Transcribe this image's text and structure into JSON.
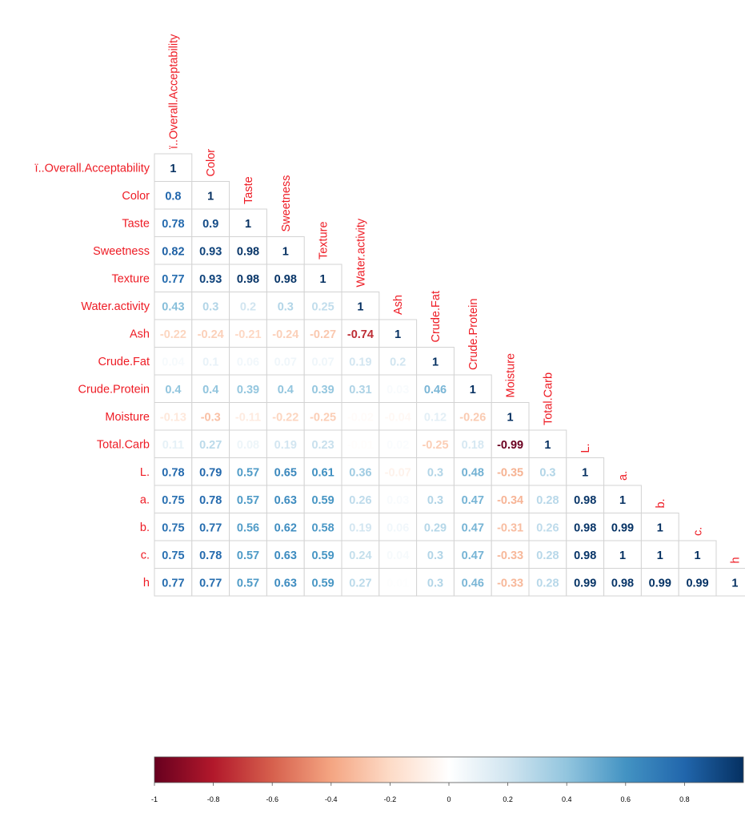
{
  "chart_data": {
    "type": "heatmap",
    "variables": [
      "ï..Overall.Acceptability",
      "Color",
      "Taste",
      "Sweetness",
      "Texture",
      "Water.activity",
      "Ash",
      "Crude.Fat",
      "Crude.Protein",
      "Moisture",
      "Total.Carb",
      "L.",
      "a.",
      "b.",
      "c.",
      "h"
    ],
    "matrix_lower": [
      [
        1
      ],
      [
        0.8,
        1
      ],
      [
        0.78,
        0.9,
        1
      ],
      [
        0.82,
        0.93,
        0.98,
        1
      ],
      [
        0.77,
        0.93,
        0.98,
        0.98,
        1
      ],
      [
        0.43,
        0.3,
        0.2,
        0.3,
        0.25,
        1
      ],
      [
        -0.22,
        -0.24,
        -0.21,
        -0.24,
        -0.27,
        -0.74,
        1
      ],
      [
        0.04,
        0.1,
        0.06,
        0.07,
        0.07,
        0.19,
        0.2,
        1
      ],
      [
        0.4,
        0.4,
        0.39,
        0.4,
        0.39,
        0.31,
        0.03,
        0.46,
        1
      ],
      [
        -0.13,
        -0.3,
        -0.11,
        -0.22,
        -0.25,
        -0.02,
        -0.04,
        0.12,
        -0.26,
        1
      ],
      [
        0.11,
        0.27,
        0.08,
        0.19,
        0.23,
        -0.01,
        0.02,
        -0.25,
        0.18,
        -0.99,
        1
      ],
      [
        0.78,
        0.79,
        0.57,
        0.65,
        0.61,
        0.36,
        -0.07,
        0.3,
        0.48,
        -0.35,
        0.3,
        1
      ],
      [
        0.75,
        0.78,
        0.57,
        0.63,
        0.59,
        0.26,
        0.03,
        0.3,
        0.47,
        -0.34,
        0.28,
        0.98,
        1
      ],
      [
        0.75,
        0.77,
        0.56,
        0.62,
        0.58,
        0.19,
        0.06,
        0.29,
        0.47,
        -0.31,
        0.26,
        0.98,
        0.99,
        1
      ],
      [
        0.75,
        0.78,
        0.57,
        0.63,
        0.59,
        0.24,
        0.04,
        0.3,
        0.47,
        -0.33,
        0.28,
        0.98,
        1,
        1,
        1
      ],
      [
        0.77,
        0.77,
        0.57,
        0.63,
        0.59,
        0.27,
        0.01,
        0.3,
        0.46,
        -0.33,
        0.28,
        0.99,
        0.98,
        0.99,
        0.99,
        1
      ]
    ],
    "colorbar": {
      "range": [
        -1,
        1
      ],
      "ticks": [
        "-1",
        "-0.8",
        "-0.6",
        "-0.4",
        "-0.2",
        "0",
        "0.2",
        "0.4",
        "0.6",
        "0.8"
      ]
    },
    "label_color": "#ee1c25",
    "palette": [
      "#67001f",
      "#b2182b",
      "#d6604d",
      "#f4a582",
      "#fddbc7",
      "#ffffff",
      "#d1e5f0",
      "#92c5de",
      "#4393c3",
      "#2166ac",
      "#053061"
    ],
    "grid": true
  }
}
